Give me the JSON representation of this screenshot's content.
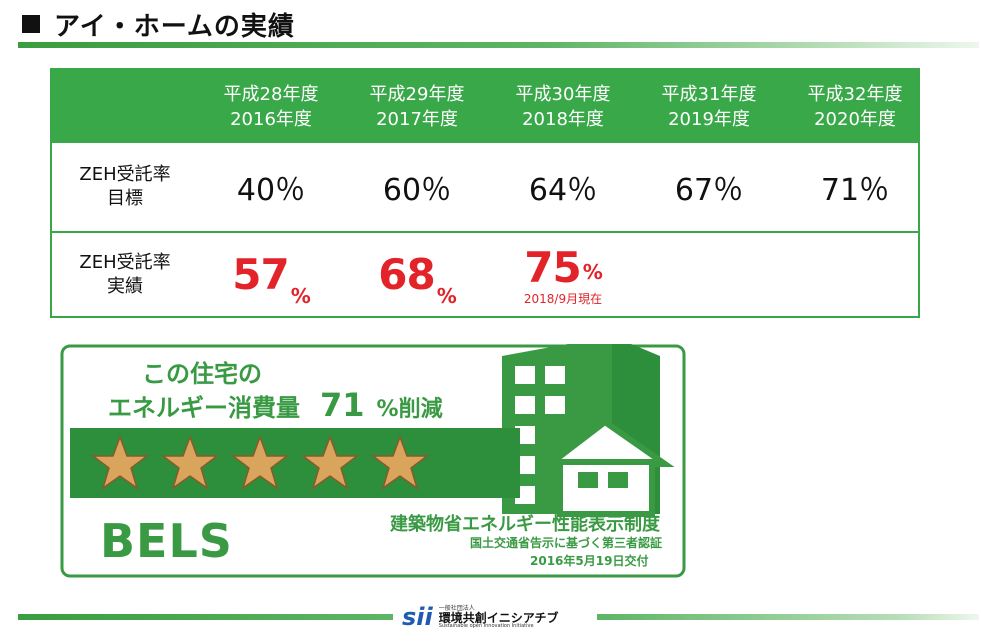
{
  "header": {
    "title": "アイ・ホームの実績"
  },
  "table": {
    "columns": [
      {
        "line1": "平成28年度",
        "line2": "2016年度"
      },
      {
        "line1": "平成29年度",
        "line2": "2017年度"
      },
      {
        "line1": "平成30年度",
        "line2": "2018年度"
      },
      {
        "line1": "平成31年度",
        "line2": "2019年度"
      },
      {
        "line1": "平成32年度",
        "line2": "2020年度"
      }
    ],
    "target_row": {
      "label1": "ZEH受託率",
      "label2": "目標",
      "values": [
        "40％",
        "60％",
        "64％",
        "67％",
        "71％"
      ]
    },
    "actual_row": {
      "label1": "ZEH受託率",
      "label2": "実績",
      "values": [
        {
          "num": "57",
          "unit": "%"
        },
        {
          "num": "68",
          "unit": "%"
        },
        {
          "num": "75",
          "unit": "%",
          "note": "2018/9月現在"
        }
      ]
    }
  },
  "bels": {
    "line1": "この住宅の",
    "line2": "エネルギー消費量",
    "number": "71",
    "reduce": "%削減",
    "stars": 5,
    "logo": "BELS",
    "caption1": "建築物省エネルギー性能表示制度",
    "caption2": "国土交通省告示に基づく第三者認証",
    "caption3": "2016年5月19日交付"
  },
  "footer": {
    "brand": "sii",
    "small": "一般社団法人",
    "name": "環境共創イニシアチブ",
    "en": "Sustainable open Innovation Initiative"
  },
  "colors": {
    "green": "#39a849",
    "red": "#e2232a",
    "gold": "#d9a45c"
  }
}
